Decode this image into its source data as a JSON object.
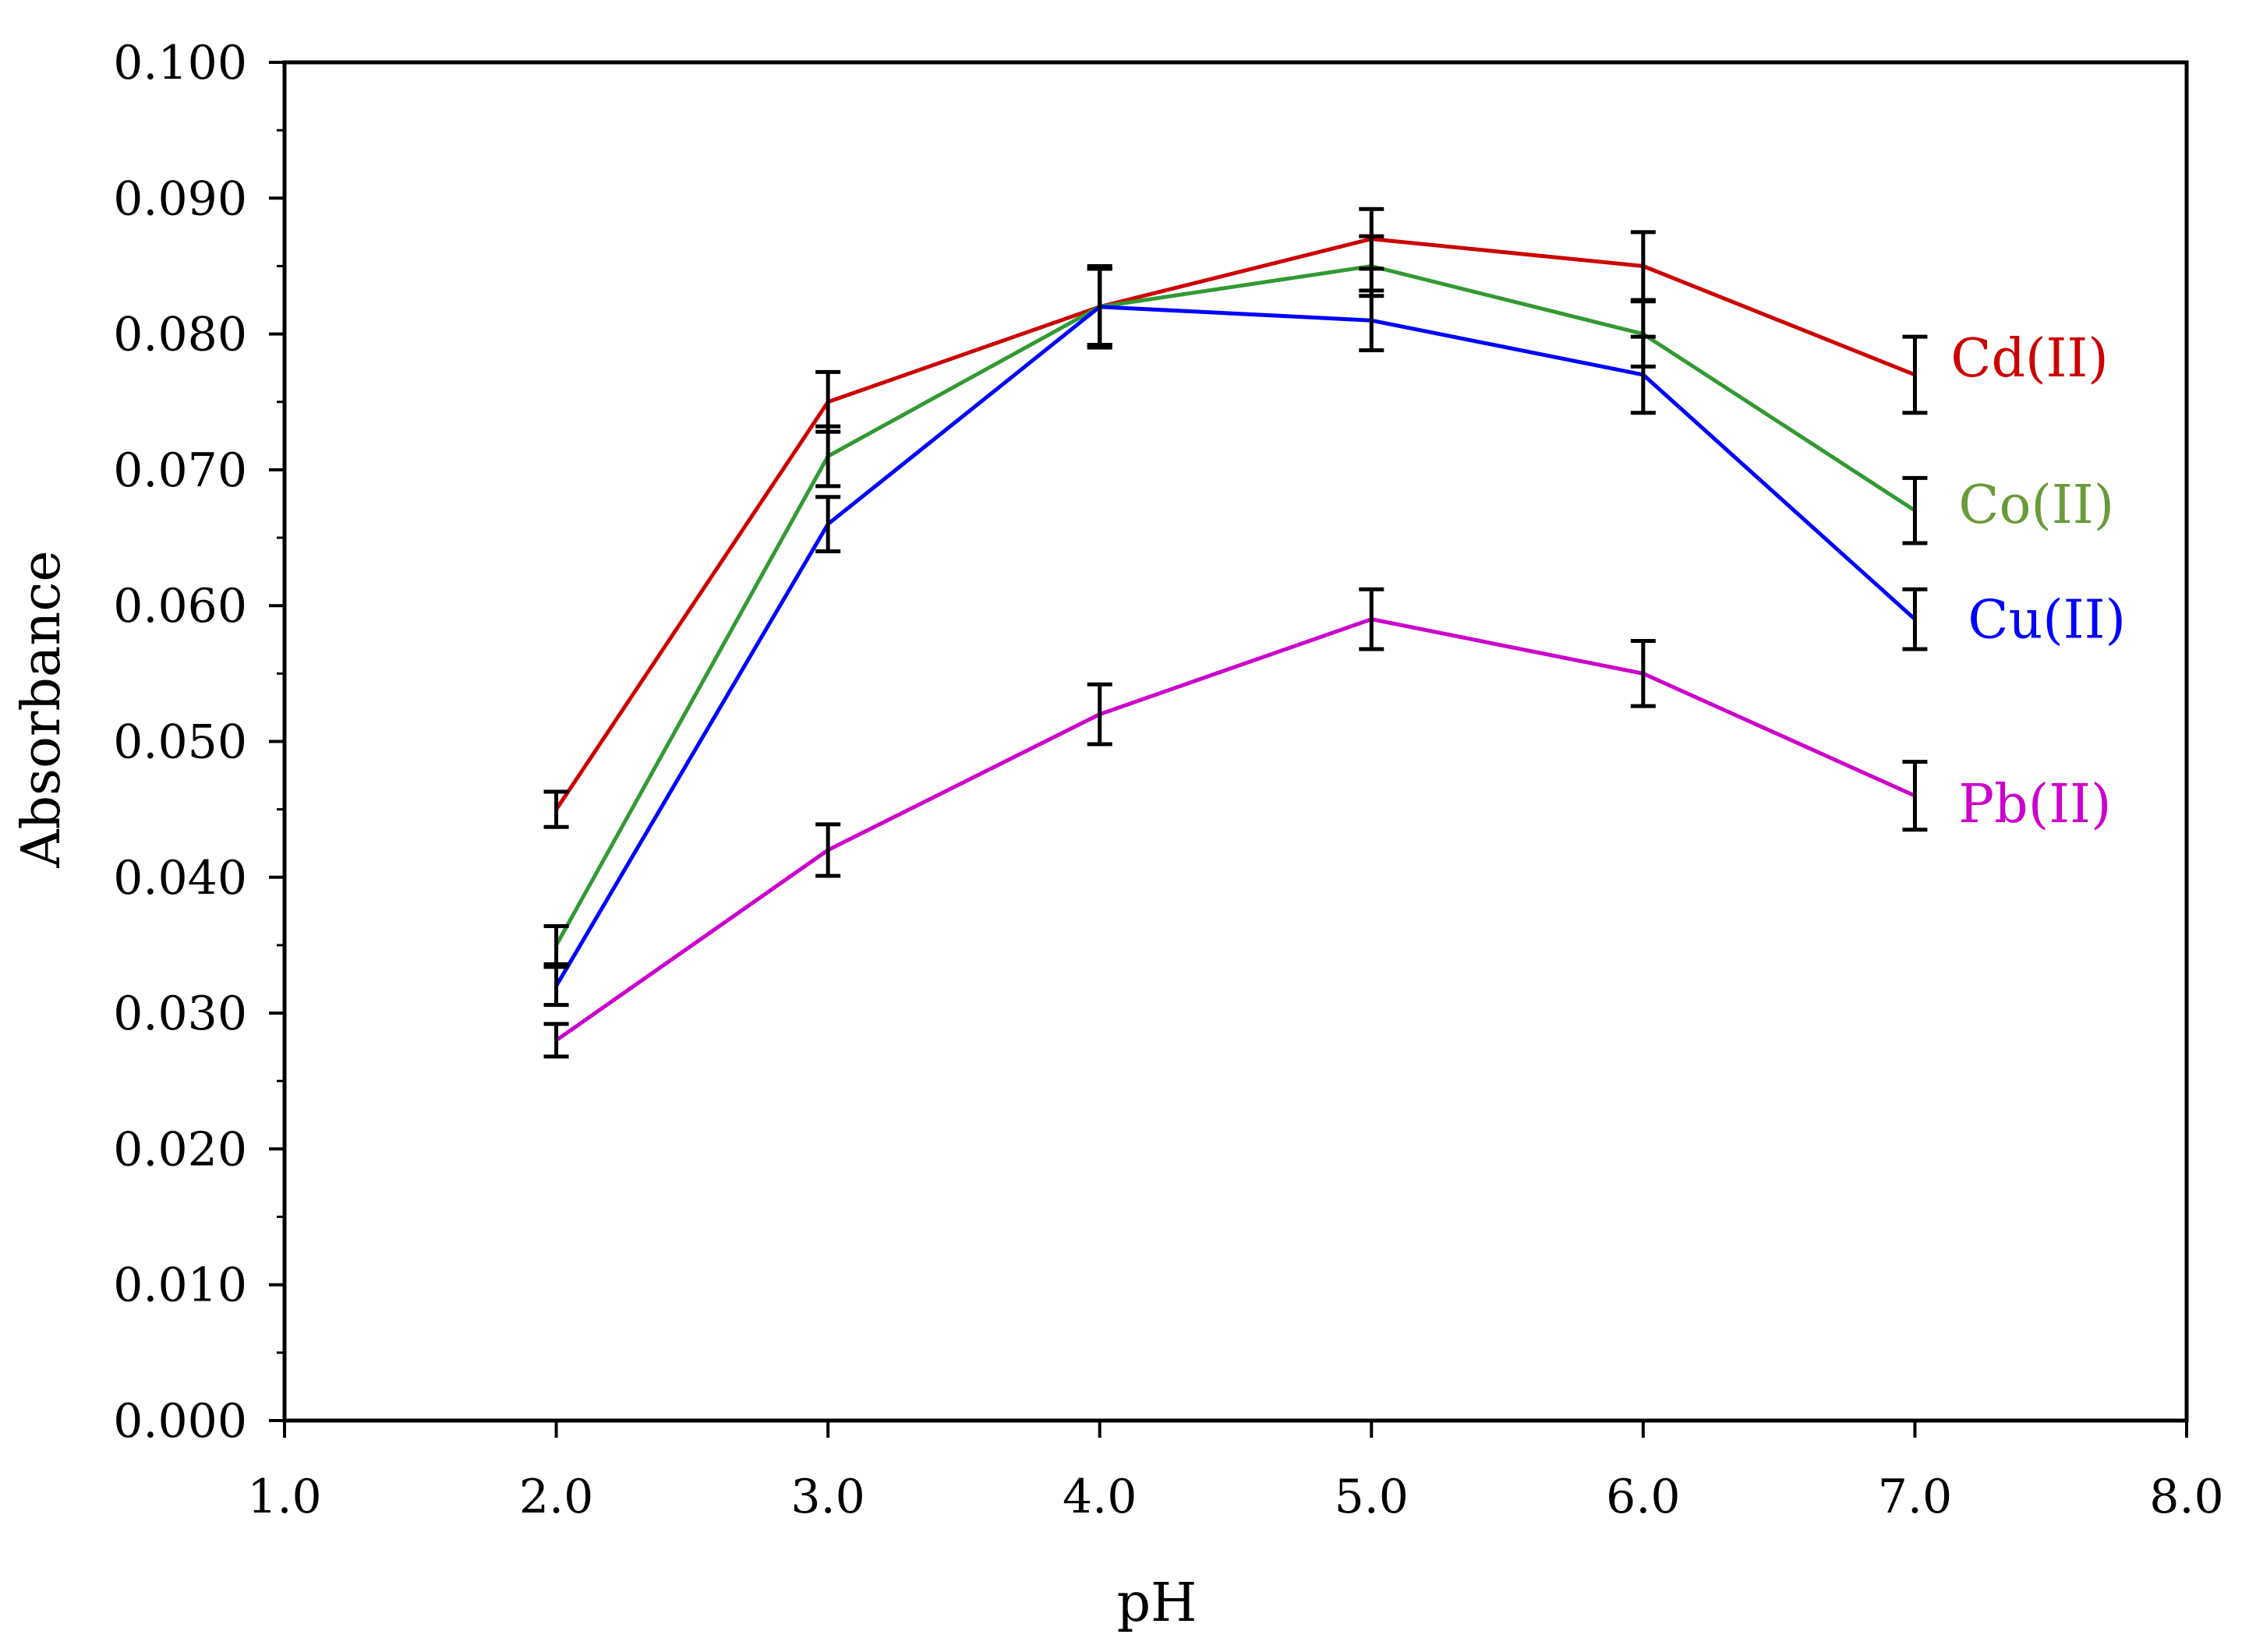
{
  "chart_data": {
    "type": "line",
    "title": "",
    "xlabel": "pH",
    "ylabel": "Absorbance",
    "xlim": [
      1.0,
      8.0
    ],
    "ylim": [
      0.0,
      0.1
    ],
    "x_ticks": [
      "1.0",
      "2.0",
      "3.0",
      "4.0",
      "5.0",
      "6.0",
      "7.0",
      "8.0"
    ],
    "y_ticks": [
      "0.000",
      "0.010",
      "0.020",
      "0.030",
      "0.040",
      "0.050",
      "0.060",
      "0.070",
      "0.080",
      "0.090",
      "0.100"
    ],
    "x": [
      2.0,
      3.0,
      4.0,
      5.0,
      6.0,
      7.0
    ],
    "grid": false,
    "series": [
      {
        "name": "Cd(II)",
        "color": "#cc0000",
        "label_color": "#cc0000",
        "values": [
          0.045,
          0.075,
          0.082,
          0.087,
          0.085,
          0.077
        ],
        "errors": [
          0.0013,
          0.0022,
          0.003,
          0.0022,
          0.0025,
          0.0028
        ]
      },
      {
        "name": "Co(II)",
        "color": "#339933",
        "label_color": "#6b9a3a",
        "values": [
          0.035,
          0.071,
          0.082,
          0.085,
          0.08,
          0.067
        ],
        "errors": [
          0.0014,
          0.0022,
          0.0028,
          0.0022,
          0.0024,
          0.0024
        ]
      },
      {
        "name": "Cu(II)",
        "color": "#0000ff",
        "label_color": "#0000ff",
        "values": [
          0.032,
          0.066,
          0.082,
          0.081,
          0.077,
          0.059
        ],
        "errors": [
          0.0014,
          0.002,
          0.0028,
          0.0022,
          0.0028,
          0.0022
        ]
      },
      {
        "name": "Pb(II)",
        "color": "#cc00cc",
        "label_color": "#cc00cc",
        "values": [
          0.028,
          0.042,
          0.052,
          0.059,
          0.055,
          0.046
        ],
        "errors": [
          0.0012,
          0.0019,
          0.0022,
          0.0022,
          0.0024,
          0.0025
        ]
      }
    ]
  }
}
